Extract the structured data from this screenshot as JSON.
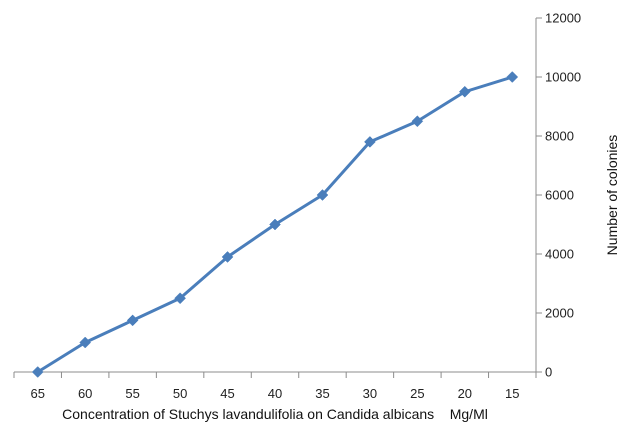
{
  "chart_data": {
    "type": "line",
    "title": "",
    "xlabel": "Concentration of Stuchys lavandulifolia on Candida albicans    Mg/Ml",
    "ylabel": "Number of colonies",
    "categories": [
      "65",
      "60",
      "55",
      "50",
      "45",
      "40",
      "35",
      "30",
      "25",
      "20",
      "15"
    ],
    "series": [
      {
        "values": [
          0,
          1000,
          1750,
          2500,
          3900,
          5000,
          6000,
          7800,
          8500,
          9500,
          10000
        ]
      }
    ],
    "ylim": [
      0,
      12000
    ],
    "yticks": [
      "0",
      "2000",
      "4000",
      "6000",
      "8000",
      "10000",
      "12000"
    ],
    "y_axis_side": "right",
    "grid": false,
    "legend": "none",
    "line_color": "#4a7ebb",
    "marker": "diamond",
    "axis_color": "#8c8c8c"
  }
}
